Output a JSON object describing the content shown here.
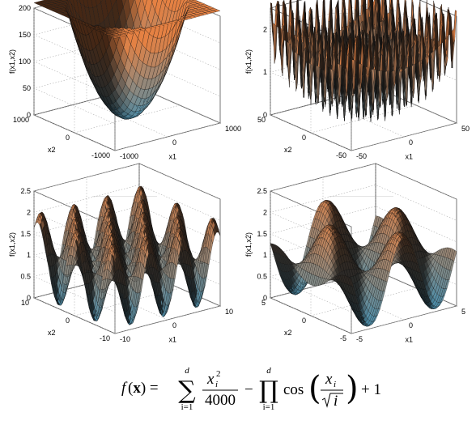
{
  "chart_data": [
    {
      "type": "surface",
      "function": "griewank",
      "xlabel": "x1",
      "ylabel": "x2",
      "zlabel": "f(x1,x2)",
      "xlim": [
        -1000,
        1000
      ],
      "ylim": [
        -1000,
        1000
      ],
      "zlim": [
        0,
        200
      ],
      "xticks": [
        -1000,
        0,
        1000
      ],
      "yticks": [
        -1000,
        0,
        1000
      ],
      "zticks": [
        0,
        50,
        100,
        150,
        200
      ],
      "grid": true
    },
    {
      "type": "surface",
      "function": "griewank",
      "xlabel": "x1",
      "ylabel": "x2",
      "zlabel": "f(x1,x2)",
      "xlim": [
        -50,
        50
      ],
      "ylim": [
        -50,
        50
      ],
      "zlim": [
        0,
        2.5
      ],
      "xticks": [
        -50,
        0,
        50
      ],
      "yticks": [
        -50,
        0,
        50
      ],
      "zticks": [
        0,
        1,
        2
      ],
      "grid": true
    },
    {
      "type": "surface",
      "function": "griewank",
      "xlabel": "x1",
      "ylabel": "x2",
      "zlabel": "f(x1,x2)",
      "xlim": [
        -10,
        10
      ],
      "ylim": [
        -10,
        10
      ],
      "zlim": [
        0,
        2.5
      ],
      "xticks": [
        -10,
        0,
        10
      ],
      "yticks": [
        -10,
        0,
        10
      ],
      "zticks": [
        0,
        0.5,
        1,
        1.5,
        2,
        2.5
      ],
      "grid": true
    },
    {
      "type": "surface",
      "function": "griewank",
      "xlabel": "x1",
      "ylabel": "x2",
      "zlabel": "f(x1,x2)",
      "xlim": [
        -5,
        5
      ],
      "ylim": [
        -5,
        5
      ],
      "zlim": [
        0,
        2.5
      ],
      "xticks": [
        -5,
        0,
        5
      ],
      "yticks": [
        -5,
        0,
        5
      ],
      "zticks": [
        0,
        0.5,
        1,
        1.5,
        2,
        2.5
      ],
      "grid": true
    }
  ],
  "formula": {
    "lhs": "f(x) =",
    "sum_upper": "d",
    "sum_lower": "i=1",
    "frac1_num": "x",
    "frac1_num_sup": "2",
    "frac1_num_sub": "i",
    "frac1_den": "4000",
    "minus": "−",
    "prod_upper": "d",
    "prod_lower": "i=1",
    "cos": "cos",
    "frac2_num": "x",
    "frac2_num_sub": "i",
    "frac2_den": "i",
    "plus_one": "+ 1"
  },
  "colors": {
    "high": "#c7703a",
    "low": "#3f7c97",
    "mesh": "#111111"
  }
}
